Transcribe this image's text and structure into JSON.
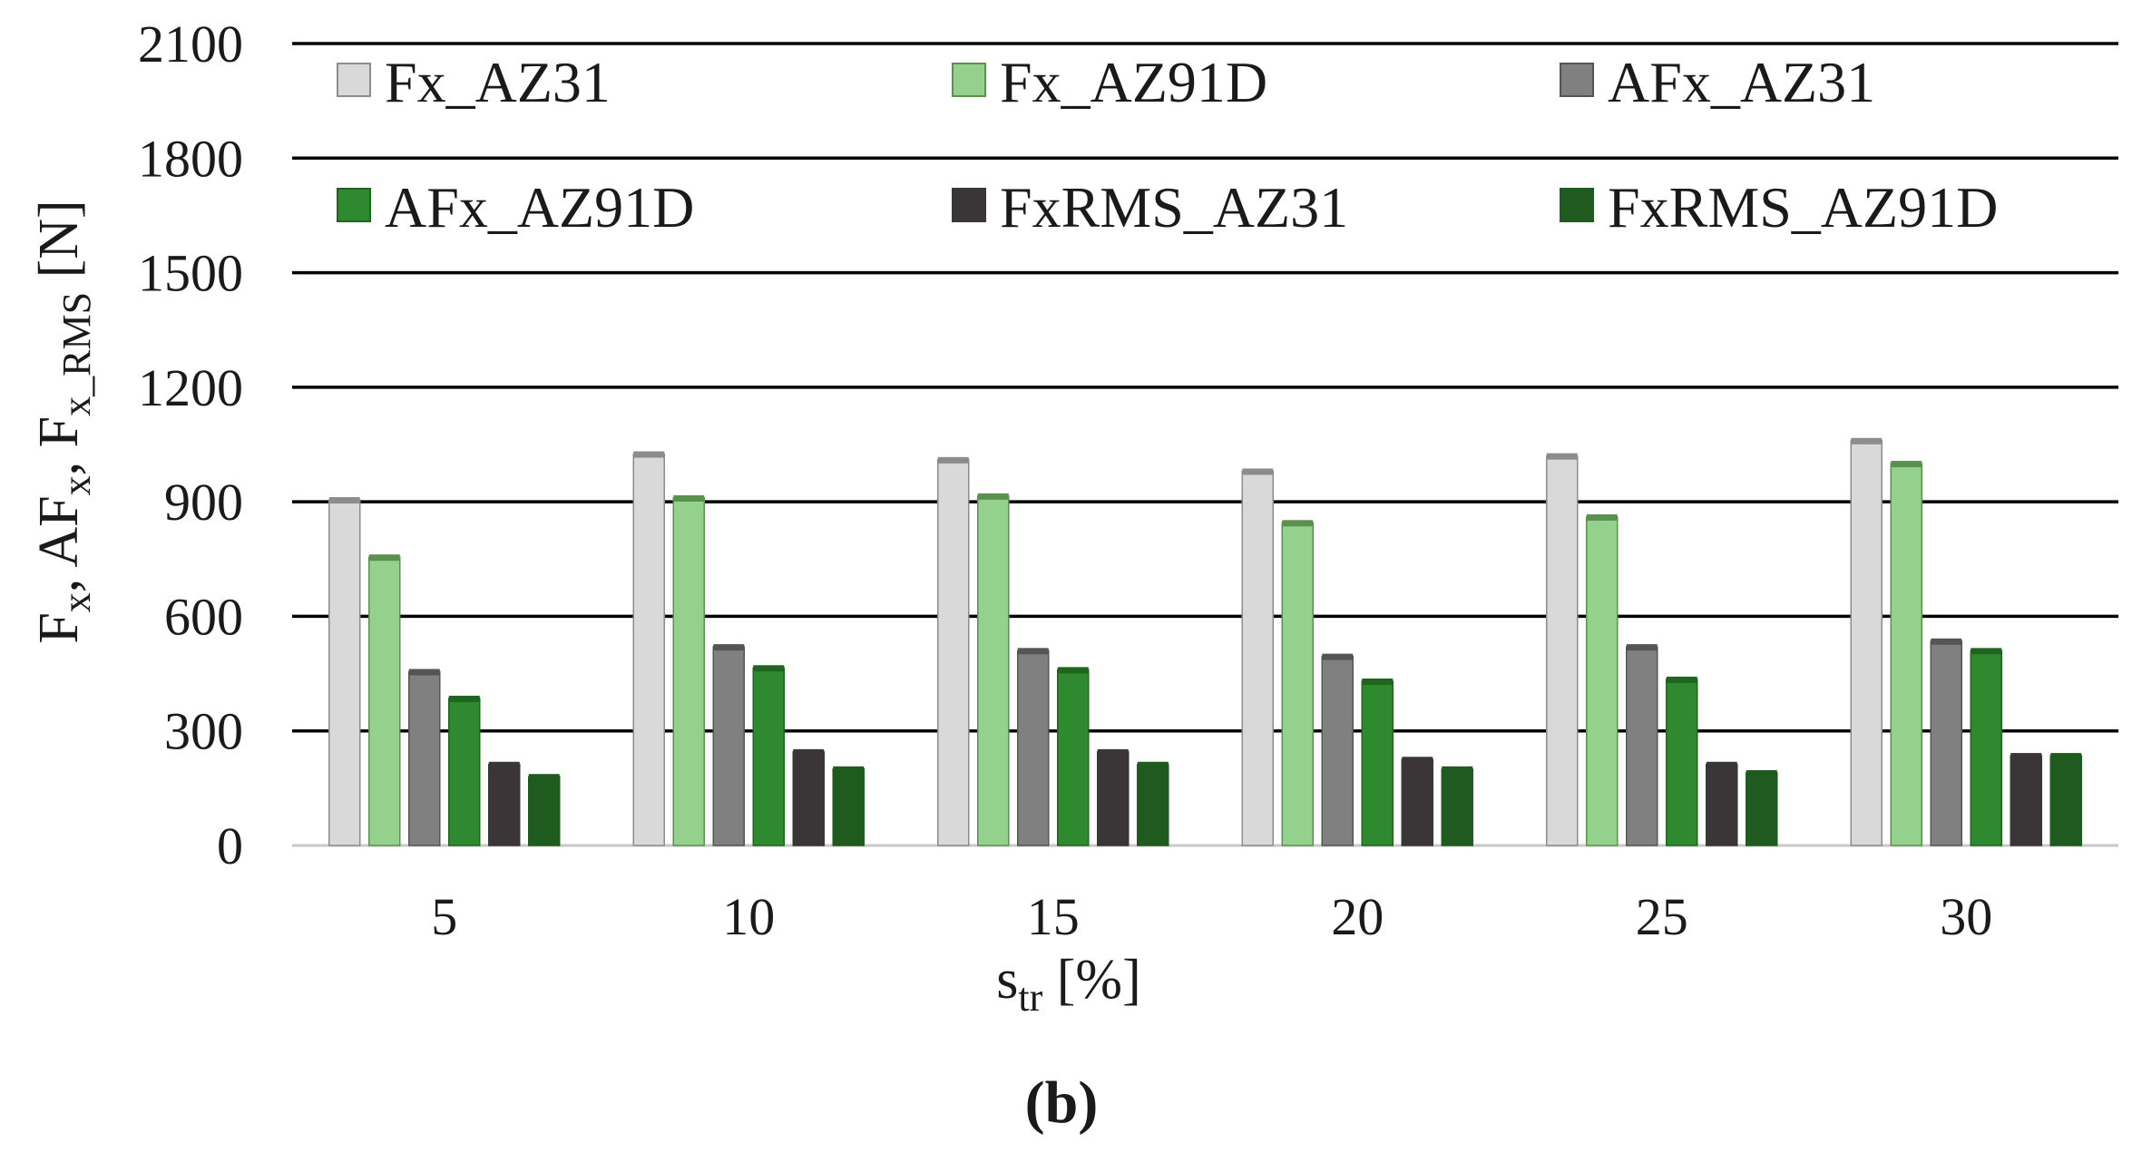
{
  "chart_data": {
    "type": "bar",
    "categories": [
      "5",
      "10",
      "15",
      "20",
      "25",
      "30"
    ],
    "series": [
      {
        "name": "Fx_AZ31",
        "color": "#d9d9d9",
        "cap": "#8c8c8c",
        "values": [
          905,
          1025,
          1010,
          980,
          1020,
          1060
        ]
      },
      {
        "name": "Fx_AZ91D",
        "color": "#93d18d",
        "cap": "#5a9150",
        "values": [
          755,
          910,
          915,
          845,
          860,
          1000
        ]
      },
      {
        "name": "AFx_AZ31",
        "color": "#808080",
        "cap": "#555555",
        "values": [
          455,
          520,
          510,
          495,
          520,
          535
        ]
      },
      {
        "name": "AFx_AZ91D",
        "color": "#2f8a2f",
        "cap": "#1f641f",
        "values": [
          385,
          465,
          460,
          430,
          435,
          510
        ]
      },
      {
        "name": "FxRMS_AZ31",
        "color": "#3a3536",
        "cap": "#3a3536",
        "values": [
          212,
          245,
          245,
          225,
          212,
          235
        ]
      },
      {
        "name": "FxRMS_AZ91D",
        "color": "#1f5a1f",
        "cap": "#1f5a1f",
        "values": [
          180,
          200,
          212,
          200,
          190,
          235
        ]
      }
    ],
    "ylim": [
      0,
      2100
    ],
    "yticks": [
      "0",
      "300",
      "600",
      "900",
      "1200",
      "1500",
      "1800",
      "2100"
    ],
    "ylabel": {
      "base": "F",
      "sub1": "x",
      "sep1": ", AF",
      "sub2": "x",
      "sep2": ",  F",
      "sub3": "x_RMS",
      "unit": "  [N]"
    },
    "xlabel": {
      "base": "s",
      "sub": "tr",
      "unit": " [%]"
    },
    "legend_position": "top, inside plot, 3 columns",
    "grid": true,
    "caption": "(b)"
  }
}
